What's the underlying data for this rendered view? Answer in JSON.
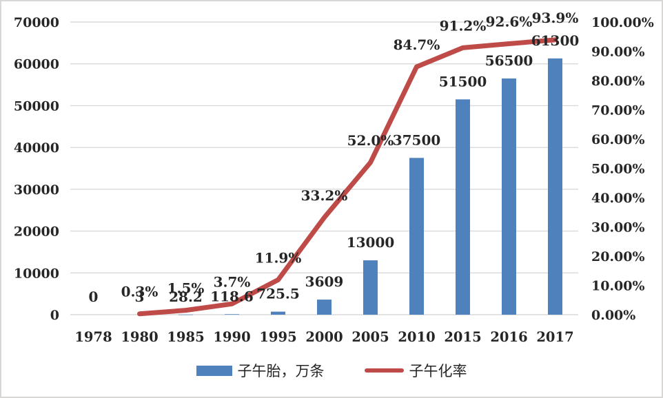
{
  "chart_data": {
    "type": "bar",
    "subtype": "combo-bar-line-dual-axis",
    "title": "",
    "categories": [
      "1978",
      "1980",
      "1985",
      "1990",
      "1995",
      "2000",
      "2005",
      "2010",
      "2015",
      "2016",
      "2017"
    ],
    "series": [
      {
        "name": "子午胎，万条",
        "type": "bar",
        "axis": "left",
        "color": "#4F81BD",
        "values": [
          0,
          3,
          28.2,
          118.6,
          725.5,
          3609,
          13000,
          37500,
          51500,
          56500,
          61300
        ],
        "labels": [
          "0",
          "3",
          "28.2",
          "118.6",
          "725.5",
          "3609",
          "13000",
          "37500",
          "51500",
          "56500",
          "61300"
        ]
      },
      {
        "name": "子午化率",
        "type": "line",
        "axis": "right",
        "color": "#BE4B48",
        "values": [
          null,
          0.3,
          1.5,
          3.7,
          11.9,
          33.2,
          52.0,
          84.7,
          91.2,
          92.6,
          93.9
        ],
        "labels": [
          "",
          "0.3%",
          "1.5%",
          "3.7%",
          "11.9%",
          "33.2%",
          "52.0%",
          "84.7%",
          "91.2%",
          "92.6%",
          "93.9%"
        ]
      }
    ],
    "left_axis": {
      "min": 0,
      "max": 70000,
      "step": 10000,
      "tick_labels": [
        "0",
        "10000",
        "20000",
        "30000",
        "40000",
        "50000",
        "60000",
        "70000"
      ]
    },
    "right_axis": {
      "min": 0,
      "max": 100,
      "step": 10,
      "tick_labels": [
        "0.00%",
        "10.00%",
        "20.00%",
        "30.00%",
        "40.00%",
        "50.00%",
        "60.00%",
        "70.00%",
        "80.00%",
        "90.00%",
        "100.00%"
      ]
    },
    "grid": true,
    "legend_position": "bottom"
  },
  "legend": {
    "bar_label": "子午胎，万条",
    "line_label": "子午化率"
  },
  "colors": {
    "bar": "#4F81BD",
    "line": "#BE4B48",
    "text": "#262626",
    "gridline": "#D9D9D9",
    "frame_border": "#D9D7D5",
    "background": "#FFFFFF"
  }
}
